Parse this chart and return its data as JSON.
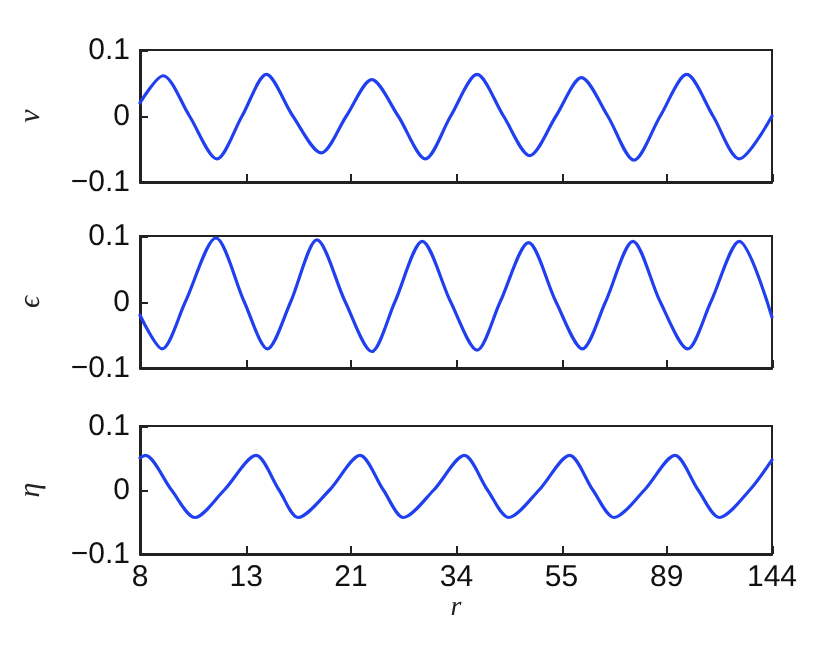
{
  "chart_data": [
    {
      "type": "line",
      "ylabel": "ν",
      "color": "#2040f0",
      "xlim": [
        8,
        144
      ],
      "xticks": [
        8,
        13,
        21,
        34,
        55,
        89,
        144
      ],
      "log": "x",
      "ylim": [
        -0.1,
        0.1
      ],
      "yticks": [
        -0.1,
        0,
        0.1
      ],
      "tick_labels": "y",
      "x": [
        8,
        8.89,
        10.03,
        11.37,
        12.76,
        14.26,
        16.09,
        18.33,
        20.56,
        23.09,
        26.05,
        29.51,
        33.13,
        37.38,
        42.17,
        47.56,
        53.63,
        60.23,
        67.92,
        76.58,
        86.4,
        97.5,
        109.96,
        123.97,
        144
      ],
      "values": [
        0.02,
        0.061,
        0,
        -0.065,
        0,
        0.063,
        0,
        -0.056,
        0,
        0.055,
        0,
        -0.065,
        0,
        0.063,
        0,
        -0.06,
        0,
        0.058,
        0,
        -0.067,
        0,
        0.063,
        0,
        -0.065,
        0
      ]
    },
    {
      "type": "line",
      "ylabel": "ϵ",
      "color": "#2040f0",
      "xlim": [
        8,
        144
      ],
      "xticks": [
        8,
        13,
        21,
        34,
        55,
        89,
        144
      ],
      "log": "x",
      "ylim": [
        -0.1,
        0.1
      ],
      "yticks": [
        -0.1,
        0,
        0.1
      ],
      "tick_labels": "y",
      "x": [
        8,
        8.85,
        9.84,
        11.32,
        12.89,
        14.33,
        15.93,
        17.97,
        20.46,
        23.09,
        25.66,
        29.09,
        33.13,
        37.38,
        41.53,
        47.3,
        53.63,
        60.51,
        67.24,
        76.23,
        86.4,
        97.95,
        108.85,
        123.97,
        144
      ],
      "values": [
        -0.02,
        -0.071,
        0,
        0.097,
        0,
        -0.071,
        0,
        0.094,
        0,
        -0.075,
        0,
        0.092,
        0,
        -0.073,
        0,
        0.09,
        0,
        -0.071,
        0,
        0.092,
        0,
        -0.071,
        0,
        0.092,
        -0.023
      ]
    },
    {
      "type": "line",
      "ylabel": "η",
      "xlabel": "r",
      "color": "#2040f0",
      "xlim": [
        8,
        144
      ],
      "xticks": [
        8,
        13,
        21,
        34,
        55,
        89,
        144
      ],
      "log": "x",
      "ylim": [
        -0.1,
        0.1
      ],
      "yticks": [
        -0.1,
        0,
        0.1
      ],
      "x": [
        8,
        8.195,
        9.24,
        10.28,
        11.76,
        13.6,
        15.11,
        16.48,
        19.04,
        21.88,
        24.35,
        26.68,
        30.66,
        35.26,
        39.2,
        43.19,
        49.64,
        57.07,
        63.46,
        69.92,
        80.36,
        92.39,
        102.73,
        113.18,
        130.08,
        144
      ],
      "values": [
        0.05,
        0.054,
        0,
        -0.043,
        0,
        0.054,
        0,
        -0.043,
        0,
        0.054,
        0,
        -0.043,
        0,
        0.054,
        0,
        -0.043,
        0,
        0.054,
        0,
        -0.043,
        0,
        0.054,
        0,
        -0.043,
        0,
        0.047
      ]
    }
  ]
}
